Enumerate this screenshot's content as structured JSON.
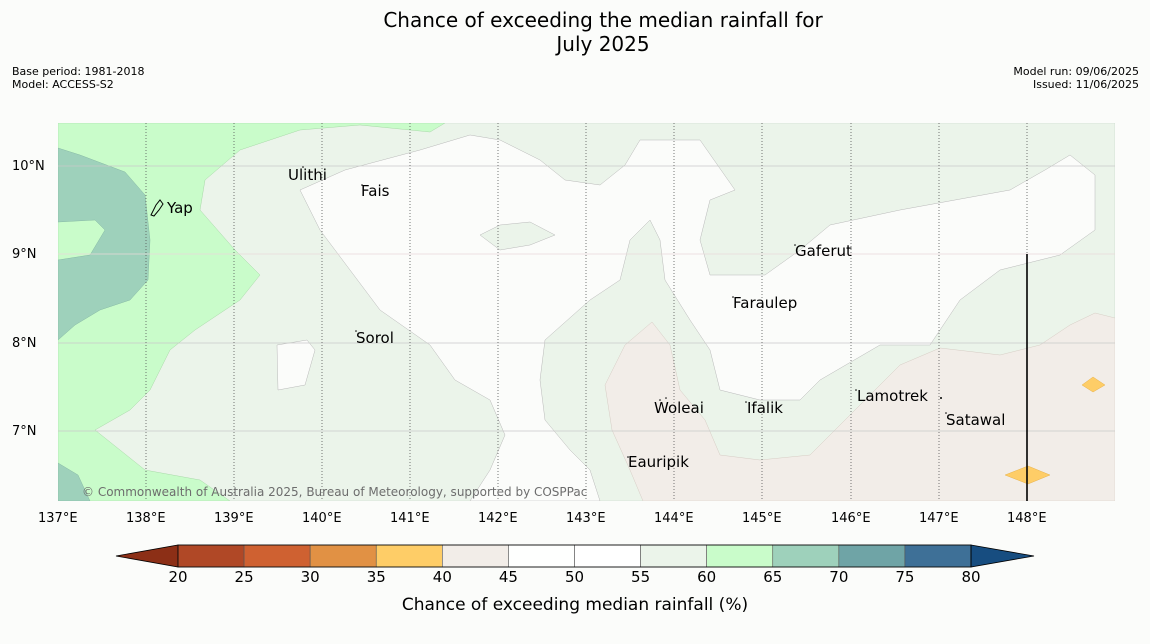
{
  "title_line1": "Chance of exceeding the median rainfall for",
  "title_line2": "July 2025",
  "meta_left": {
    "base_period": "Base period: 1981-2018",
    "model": "Model: ACCESS-S2"
  },
  "meta_right": {
    "model_run": "Model run: 09/06/2025",
    "issued": "Issued: 11/06/2025"
  },
  "lat_labels": [
    "10°N",
    "9°N",
    "8°N",
    "7°N"
  ],
  "lon_labels": [
    "137°E",
    "138°E",
    "139°E",
    "140°E",
    "141°E",
    "142°E",
    "143°E",
    "144°E",
    "145°E",
    "146°E",
    "147°E",
    "148°E"
  ],
  "places": [
    "Ulithi",
    "Fais",
    "Yap",
    "Gaferut",
    "Faraulep",
    "Sorol",
    "Lamotrek",
    "Woleai",
    "Ifalik",
    "Satawal",
    "Eauripik"
  ],
  "copyright": "© Commonwealth of Australia 2025, Bureau of Meteorology, supported by COSPPac",
  "colorbar": {
    "title": "Chance of exceeding median rainfall (%)",
    "ticks": [
      "20",
      "25",
      "30",
      "35",
      "40",
      "45",
      "50",
      "55",
      "60",
      "65",
      "70",
      "75",
      "80"
    ],
    "under_color": "#8c2f16",
    "over_color": "#174d80",
    "colors": [
      "#b04826",
      "#cf6131",
      "#e19144",
      "#fecd67",
      "#f2ede8",
      "#fefffe",
      "#ffffff",
      "#ebf4ea",
      "#c9fcca",
      "#9ed1bb",
      "#6fa4a6",
      "#3e7097"
    ]
  },
  "chart_data": {
    "type": "map",
    "lon_range": [
      137,
      149
    ],
    "lat_range": [
      6.2,
      10.5
    ],
    "legend": "bottom",
    "grid": true
  }
}
